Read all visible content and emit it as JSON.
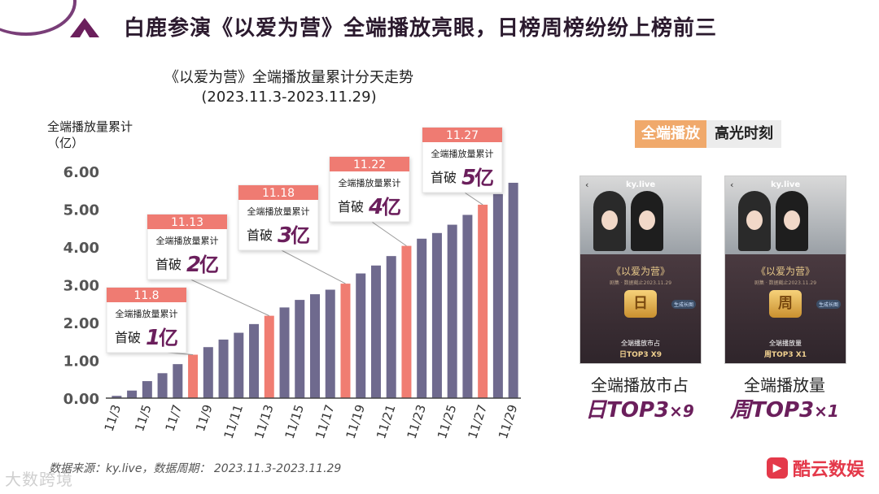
{
  "header": {
    "title": "白鹿参演《以爱为营》全端播放亮眼，日榜周榜纷纷上榜前三"
  },
  "chart_data": {
    "type": "bar",
    "title": "《以爱为营》全端播放量累计分天走势",
    "subtitle": "(2023.11.3-2023.11.29)",
    "ylabel": "全端播放量累计（亿）",
    "ylim": [
      0,
      6
    ],
    "yticks": [
      "0.00",
      "1.00",
      "2.00",
      "3.00",
      "4.00",
      "5.00",
      "6.00"
    ],
    "categories": [
      "11/3",
      "11/4",
      "11/5",
      "11/6",
      "11/7",
      "11/8",
      "11/9",
      "11/10",
      "11/11",
      "11/12",
      "11/13",
      "11/14",
      "11/15",
      "11/16",
      "11/17",
      "11/18",
      "11/19",
      "11/20",
      "11/21",
      "11/22",
      "11/23",
      "11/24",
      "11/25",
      "11/26",
      "11/27",
      "11/28",
      "11/29"
    ],
    "tick_labels": [
      "11/3",
      "",
      "11/5",
      "",
      "11/7",
      "",
      "11/9",
      "",
      "11/11",
      "",
      "11/13",
      "",
      "11/15",
      "",
      "11/17",
      "",
      "11/19",
      "",
      "11/21",
      "",
      "11/23",
      "",
      "11/25",
      "",
      "11/27",
      "",
      "11/29"
    ],
    "values": [
      0.06,
      0.2,
      0.45,
      0.66,
      0.9,
      1.15,
      1.35,
      1.55,
      1.73,
      1.96,
      2.18,
      2.4,
      2.6,
      2.75,
      2.87,
      3.03,
      3.3,
      3.51,
      3.76,
      4.03,
      4.22,
      4.37,
      4.59,
      4.85,
      5.12,
      5.4,
      5.7
    ],
    "highlight_indices": [
      5,
      10,
      15,
      19,
      24
    ],
    "colors": {
      "normal": "#6f6a8e",
      "highlight": "#f07d72",
      "annotation_date_bg": "#ef7b72",
      "annotation_value": "#6b1f5c"
    },
    "annotations": [
      {
        "date": "11.8",
        "label": "全端播放量累计",
        "prefix": "首破",
        "value": "1",
        "unit": "亿"
      },
      {
        "date": "11.13",
        "label": "全端播放量累计",
        "prefix": "首破",
        "value": "2",
        "unit": "亿"
      },
      {
        "date": "11.18",
        "label": "全端播放量累计",
        "prefix": "首破",
        "value": "3",
        "unit": "亿"
      },
      {
        "date": "11.22",
        "label": "全端播放量累计",
        "prefix": "首破",
        "value": "4",
        "unit": "亿"
      },
      {
        "date": "11.27",
        "label": "全端播放量累计",
        "prefix": "首破",
        "value": "5",
        "unit": "亿"
      }
    ]
  },
  "source": "数据来源：ky.live，数据周期： 2023.11.3-2023.11.29",
  "watermark": "大数跨境",
  "highlight_tag": {
    "left": "全端播放",
    "right": "高光时刻"
  },
  "cards": [
    {
      "app": "ky.live",
      "drama": "《以爱为营》",
      "sub": "剧集 · 数据截止2023.11.29",
      "badge": "日",
      "button": "生成长图",
      "metric": "全端播放市占",
      "metric_value": "日TOP3   X9",
      "caption_top": "全端播放市占",
      "caption_main": "日TOP3",
      "caption_mult": "×9"
    },
    {
      "app": "ky.live",
      "drama": "《以爱为营》",
      "sub": "剧集 · 数据截止2023.11.29",
      "badge": "周",
      "button": "生成长图",
      "metric": "全端播放量",
      "metric_value": "周TOP3   X1",
      "caption_top": "全端播放量",
      "caption_main": "周TOP3",
      "caption_mult": "×1"
    }
  ],
  "brand": {
    "icon": "▶",
    "name": "酷云数娱"
  }
}
